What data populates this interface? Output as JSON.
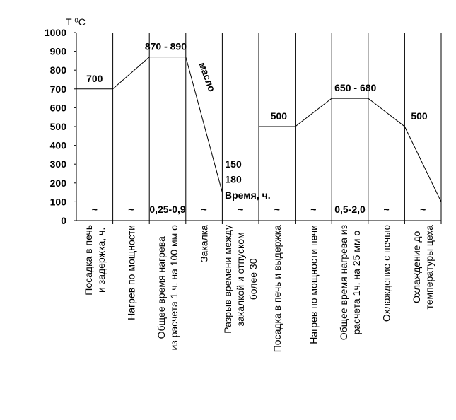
{
  "chart_data": {
    "type": "line",
    "ylabel": "T ⁰С",
    "xlabel": "Время, ч.",
    "ylim": [
      0,
      1000
    ],
    "yticks": [
      0,
      100,
      200,
      300,
      400,
      500,
      600,
      700,
      800,
      900,
      1000
    ],
    "stages": [
      "Посадка в печь\nи задержка, ч.",
      "Нагрев по мощности",
      "Общее время нагрева\nиз расчета 1 ч. на 100 мм о",
      "Закалка",
      "Разрыв времени между\nзакалкой и отпуском\nболее 30",
      "Посадка в печь и выдержка",
      "Нагрев по мощности печи",
      "Общее время нагрева из\nрасчета 1ч. на 25 мм о",
      "Охлаждение с печью",
      "Охлаждение до\nтемпературы цеха"
    ],
    "stage_durations": [
      "~",
      "~",
      "0,25-0,9",
      "~",
      "~",
      "~",
      "~",
      "0,5-2,0",
      "~",
      "~"
    ],
    "segments": [
      [
        {
          "x": 0,
          "y": 700
        },
        {
          "x": 1,
          "y": 700
        },
        {
          "x": 2,
          "y": 870
        },
        {
          "x": 3,
          "y": 870
        },
        {
          "x": 4,
          "y": 150
        }
      ],
      [
        {
          "x": 5,
          "y": 500
        },
        {
          "x": 6,
          "y": 500
        },
        {
          "x": 7,
          "y": 650
        },
        {
          "x": 8,
          "y": 650
        },
        {
          "x": 9,
          "y": 500
        },
        {
          "x": 10,
          "y": 100
        }
      ]
    ],
    "annotations": [
      {
        "text": "700",
        "x": 0.5,
        "y": 700
      },
      {
        "text": "870 - 890",
        "x": 2.45,
        "y": 870
      },
      {
        "text": "масло",
        "x": 3.5,
        "y": 720
      },
      {
        "text": "150",
        "x": 4,
        "y": 300
      },
      {
        "text": "180",
        "x": 4,
        "y": 220
      },
      {
        "text": "500",
        "x": 5.55,
        "y": 500
      },
      {
        "text": "650 - 680",
        "x": 7.65,
        "y": 650
      },
      {
        "text": "500",
        "x": 9.4,
        "y": 500
      }
    ],
    "grid": false
  }
}
